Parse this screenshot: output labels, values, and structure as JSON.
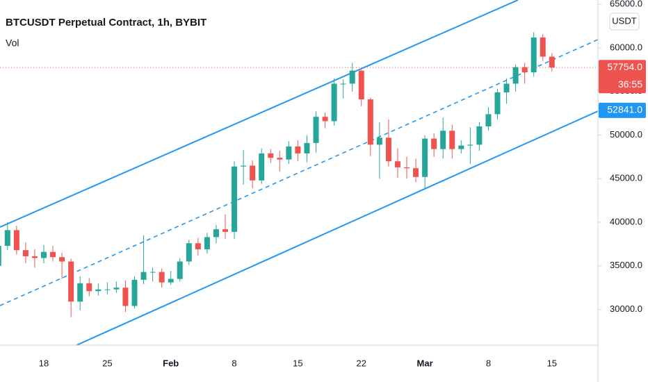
{
  "chart_data": {
    "type": "candlestick",
    "title": "BTCUSDT Perpetual Contract, 1h, BYBIT",
    "indicator": "Vol",
    "currency_button": "USDT",
    "categories": [
      null,
      null,
      null,
      null,
      null,
      "18",
      null,
      null,
      null,
      null,
      null,
      null,
      "25",
      null,
      null,
      null,
      null,
      null,
      null,
      "Feb",
      null,
      null,
      null,
      null,
      null,
      null,
      "8",
      null,
      null,
      null,
      null,
      null,
      null,
      "15",
      null,
      null,
      null,
      null,
      null,
      null,
      "22",
      null,
      null,
      null,
      null,
      null,
      null,
      "Mar",
      null,
      null,
      null,
      null,
      null,
      null,
      "8",
      null,
      null,
      null,
      null,
      null,
      null,
      "15"
    ],
    "open": [
      35000,
      37300,
      39100,
      36800,
      36100,
      35900,
      36600,
      36000,
      35500,
      30900,
      33000,
      32100,
      32300,
      32300,
      32500,
      30400,
      33400,
      34300,
      34300,
      33100,
      33500,
      35500,
      37600,
      36900,
      38300,
      39200,
      38900,
      46400,
      46500,
      44800,
      47900,
      47400,
      47200,
      48700,
      47900,
      49100,
      52100,
      51600,
      55900,
      55900,
      57400,
      54100,
      48900,
      49700,
      47000,
      46300,
      46200,
      45200,
      49600,
      48400,
      50500,
      48400,
      48800,
      48900,
      51000,
      52400,
      54900,
      55900,
      57800,
      57200,
      61200,
      59000
    ],
    "high": [
      37800,
      40000,
      39600,
      37700,
      36900,
      37400,
      37300,
      36500,
      35800,
      33800,
      33600,
      33000,
      33100,
      33200,
      33300,
      33800,
      38500,
      34800,
      34700,
      34400,
      35900,
      38000,
      38200,
      38800,
      39700,
      40900,
      47000,
      48300,
      47100,
      48500,
      48400,
      48200,
      49300,
      49400,
      50000,
      52700,
      52600,
      56500,
      56400,
      58300,
      57500,
      54300,
      51500,
      51800,
      48500,
      47500,
      47300,
      50000,
      50200,
      52000,
      51200,
      49400,
      50900,
      51500,
      53200,
      55300,
      56500,
      58100,
      58300,
      61800,
      61600,
      59400
    ],
    "low": [
      33900,
      36800,
      36300,
      35300,
      34800,
      35300,
      35500,
      33500,
      29100,
      29900,
      31500,
      31600,
      31700,
      31900,
      29700,
      30100,
      32900,
      33200,
      32500,
      32800,
      33200,
      35100,
      36200,
      36400,
      37600,
      38100,
      38100,
      44300,
      43900,
      44400,
      46800,
      45800,
      46700,
      47000,
      46900,
      48000,
      50800,
      51100,
      54200,
      55000,
      53300,
      47600,
      45000,
      46400,
      45100,
      45000,
      44600,
      43900,
      47500,
      47300,
      47300,
      47900,
      46700,
      48200,
      50500,
      51800,
      53600,
      55000,
      55900,
      56700,
      58500,
      57300
    ],
    "close": [
      37300,
      39100,
      36800,
      36100,
      35900,
      36600,
      36000,
      35500,
      30900,
      33000,
      32100,
      32300,
      32300,
      32500,
      30400,
      33400,
      34300,
      34300,
      33100,
      33500,
      35500,
      37600,
      36900,
      38300,
      39200,
      38900,
      46400,
      46500,
      44800,
      47900,
      47400,
      47200,
      48700,
      47900,
      49100,
      52100,
      51600,
      55900,
      55900,
      57400,
      54100,
      48900,
      49700,
      47000,
      46300,
      46200,
      45200,
      49600,
      48400,
      50500,
      48400,
      48800,
      48900,
      51000,
      52400,
      54900,
      55900,
      57800,
      57200,
      61200,
      59000,
      57754
    ],
    "up_color": "#26a69a",
    "down_color": "#ef5350",
    "ylim": [
      25900,
      65500
    ],
    "yticks": [
      {
        "value": 30000,
        "label": "30000.0"
      },
      {
        "value": 35000,
        "label": "35000.0"
      },
      {
        "value": 40000,
        "label": "40000.0"
      },
      {
        "value": 45000,
        "label": "45000.0"
      },
      {
        "value": 50000,
        "label": "50000.0"
      },
      {
        "value": 55000,
        "label": "55000.0"
      },
      {
        "value": 60000,
        "label": "60000.0"
      },
      {
        "value": 65000,
        "label": "65000.0"
      }
    ],
    "last_price": {
      "value": 57754,
      "label": "57754.0",
      "countdown": "36:55",
      "color": "#ef5350"
    },
    "line_price": {
      "value": 52841,
      "label": "52841.0",
      "color": "#2196f3"
    },
    "grid": false
  }
}
